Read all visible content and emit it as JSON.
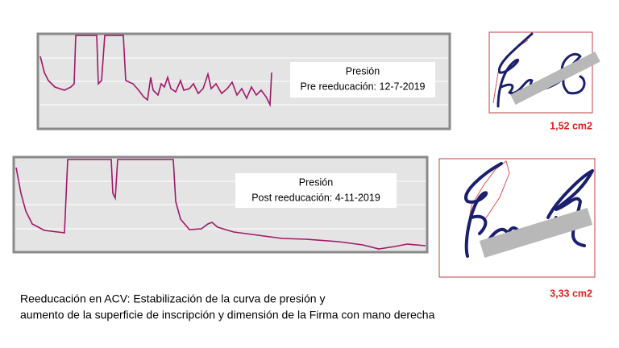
{
  "panels": [
    {
      "legend_title": "Presión",
      "legend_subtitle": "Pre reeducación: 12-7-2019",
      "area_label": "1,52 cm2"
    },
    {
      "legend_title": "Presión",
      "legend_subtitle": "Post reeducación: 4-11-2019",
      "area_label": "3,33 cm2"
    }
  ],
  "caption": [
    "Reeducación en ACV: Estabilización de la curva de presión y",
    "aumento de la superficie de inscripción y dimensión de la Firma con mano derecha"
  ]
}
